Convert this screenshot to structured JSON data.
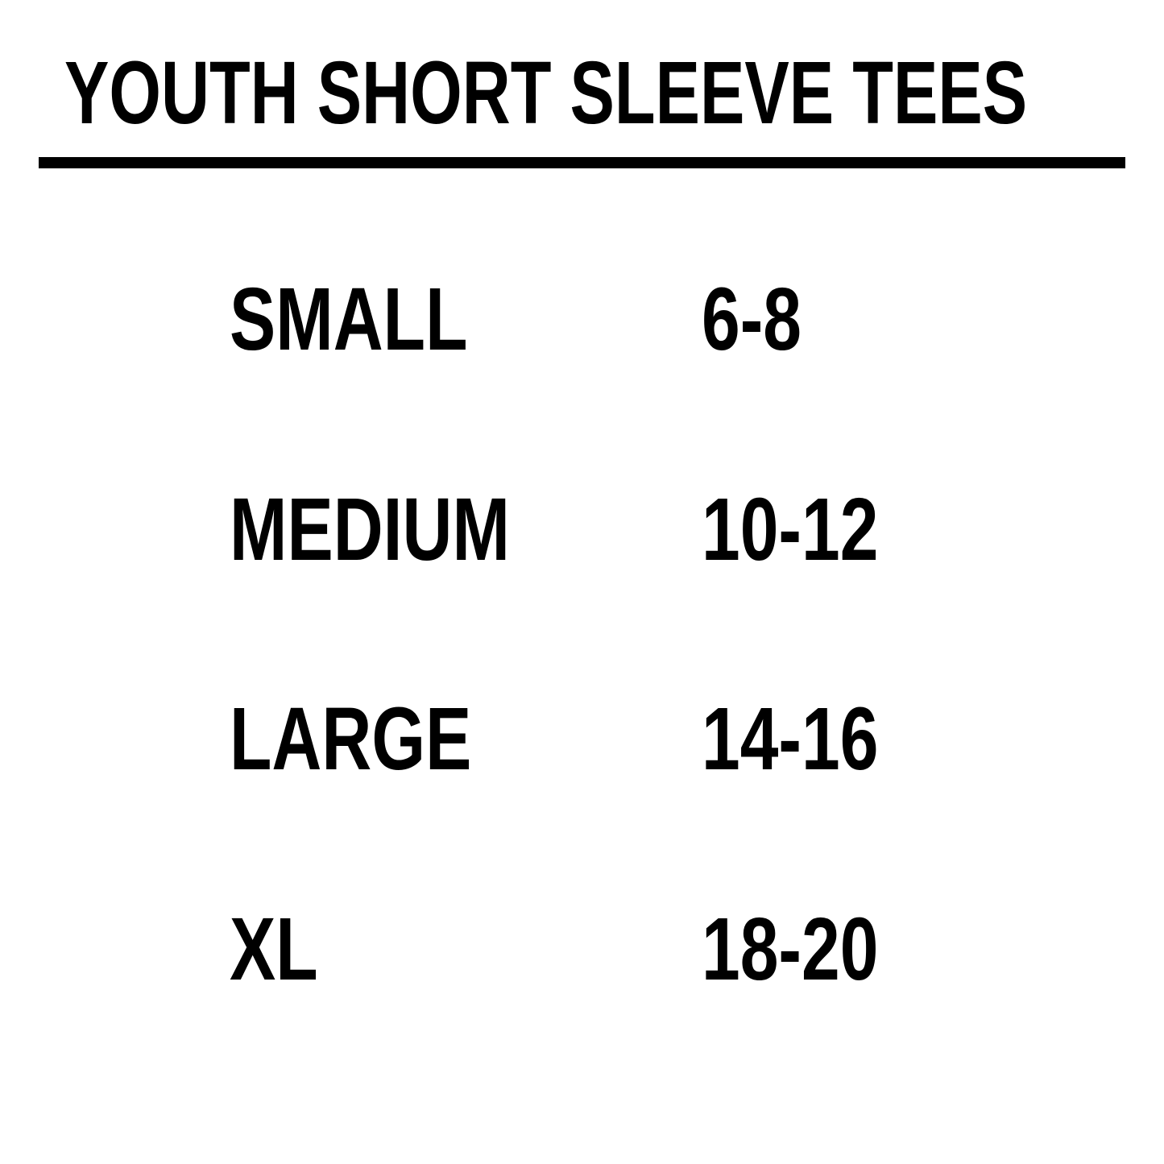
{
  "title": "YOUTH SHORT SLEEVE TEES",
  "sizes": [
    {
      "size": "SMALL",
      "ages": "6-8"
    },
    {
      "size": "MEDIUM",
      "ages": "10-12"
    },
    {
      "size": "LARGE",
      "ages": "14-16"
    },
    {
      "size": "XL",
      "ages": "18-20"
    }
  ],
  "colors": {
    "text": "#000000",
    "background": "#ffffff"
  }
}
